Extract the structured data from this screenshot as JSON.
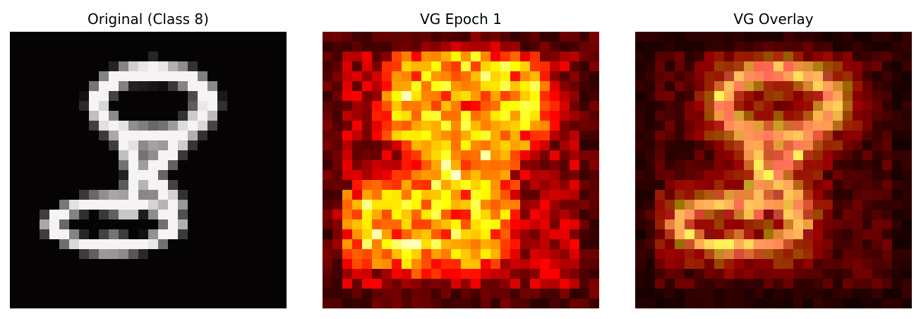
{
  "figure": {
    "panels": [
      {
        "title": "Original (Class 8)",
        "image": "grayscale handwritten digit 8 on black background",
        "colormap": "gray"
      },
      {
        "title": "VG Epoch 1",
        "image": "vanilla gradient saliency heatmap of digit 8",
        "colormap": "hot"
      },
      {
        "title": "VG Overlay",
        "image": "saliency heatmap overlaid on digit 8",
        "colormap": "hot overlay"
      }
    ],
    "grid_size": 28,
    "background_color": "#ffffff"
  }
}
